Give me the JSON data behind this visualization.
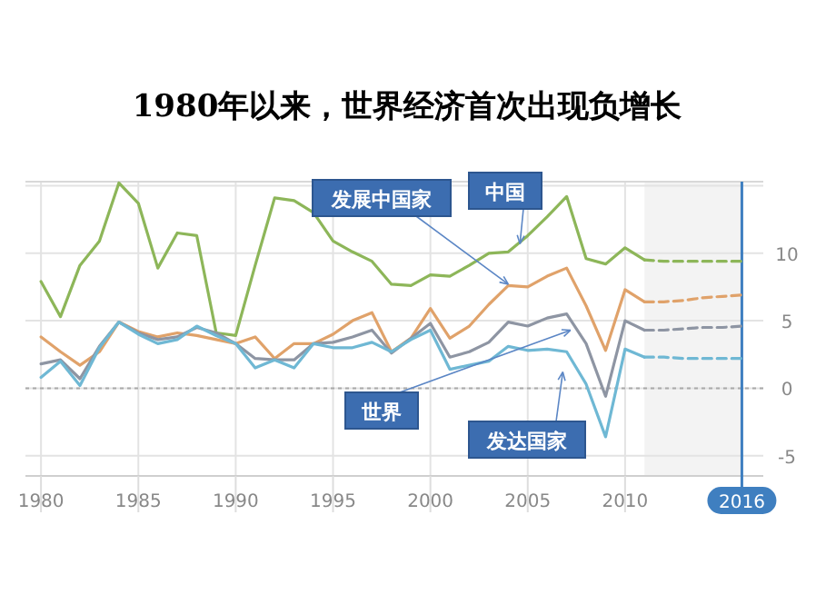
{
  "chart_data": {
    "type": "line",
    "title": "1980年以来，世界经济首次出现负增长",
    "xlim": [
      1979.2,
      2017.1
    ],
    "xticks": [
      1980,
      1985,
      1990,
      1995,
      2000,
      2005,
      2010,
      2016
    ],
    "ylim": [
      -6.5,
      15.3
    ],
    "yticks": [
      -5,
      0,
      5,
      10,
      {
        "value": 15,
        "label": null
      }
    ],
    "grid": true,
    "marker": "none",
    "ref_lines": [
      {
        "axis": "y",
        "value": 0,
        "label": null,
        "line_style": "dotted",
        "color": "#aaaaaa"
      }
    ],
    "bands": [
      {
        "axis": "x",
        "from": 2011,
        "to": 2016,
        "label": null,
        "color": "#f3f3f3"
      }
    ],
    "series": [
      {
        "name": "发展中国家",
        "color": "#e0a26a",
        "x": [
          1980,
          1981,
          1982,
          1983,
          1984,
          1985,
          1986,
          1987,
          1988,
          1989,
          1990,
          1991,
          1992,
          1993,
          1994,
          1995,
          1996,
          1997,
          1998,
          1999,
          2000,
          2001,
          2002,
          2003,
          2004,
          2005,
          2006,
          2007,
          2008,
          2009,
          2010,
          2011
        ],
        "values": [
          3.8,
          2.7,
          1.7,
          2.7,
          4.9,
          4.2,
          3.8,
          4.1,
          3.9,
          3.6,
          3.3,
          3.8,
          2.2,
          3.3,
          3.3,
          4.0,
          5.0,
          5.6,
          2.7,
          3.7,
          5.9,
          3.7,
          4.6,
          6.2,
          7.6,
          7.5,
          8.3,
          8.9,
          6.1,
          2.8,
          7.3,
          6.4
        ]
      },
      {
        "name": "中国",
        "color": "#8db659",
        "x": [
          1980,
          1981,
          1982,
          1983,
          1984,
          1985,
          1986,
          1987,
          1988,
          1989,
          1990,
          1991,
          1992,
          1993,
          1994,
          1995,
          1996,
          1997,
          1998,
          1999,
          2000,
          2001,
          2002,
          2003,
          2004,
          2005,
          2006,
          2007,
          2008,
          2009,
          2010,
          2011
        ],
        "values": [
          7.9,
          5.3,
          9.1,
          10.9,
          15.2,
          13.7,
          8.9,
          11.5,
          11.3,
          4.1,
          3.9,
          9.1,
          14.1,
          13.9,
          13.0,
          10.9,
          10.1,
          9.4,
          7.7,
          7.6,
          8.4,
          8.3,
          9.1,
          10.0,
          10.1,
          11.3,
          12.7,
          14.2,
          9.6,
          9.2,
          10.4,
          9.5
        ]
      },
      {
        "name": "世界",
        "color": "#8e95a3",
        "x": [
          1980,
          1981,
          1982,
          1983,
          1984,
          1985,
          1986,
          1987,
          1988,
          1989,
          1990,
          1991,
          1992,
          1993,
          1994,
          1995,
          1996,
          1997,
          1998,
          1999,
          2000,
          2001,
          2002,
          2003,
          2004,
          2005,
          2006,
          2007,
          2008,
          2009,
          2010,
          2011
        ],
        "values": [
          1.8,
          2.1,
          0.7,
          3.1,
          4.9,
          4.1,
          3.6,
          3.8,
          4.5,
          4.1,
          3.3,
          2.2,
          2.1,
          2.1,
          3.3,
          3.4,
          3.8,
          4.3,
          2.6,
          3.7,
          4.8,
          2.3,
          2.7,
          3.4,
          4.9,
          4.6,
          5.2,
          5.5,
          3.3,
          -0.6,
          5.0,
          4.3
        ]
      },
      {
        "name": "发达国家",
        "color": "#6fb8d4",
        "x": [
          1980,
          1981,
          1982,
          1983,
          1984,
          1985,
          1986,
          1987,
          1988,
          1989,
          1990,
          1991,
          1992,
          1993,
          1994,
          1995,
          1996,
          1997,
          1998,
          1999,
          2000,
          2001,
          2002,
          2003,
          2004,
          2005,
          2006,
          2007,
          2008,
          2009,
          2010,
          2011
        ],
        "values": [
          0.8,
          2.0,
          0.2,
          3.0,
          4.9,
          4.0,
          3.3,
          3.6,
          4.6,
          3.9,
          3.3,
          1.5,
          2.1,
          1.5,
          3.3,
          3.0,
          3.0,
          3.4,
          2.7,
          3.6,
          4.3,
          1.4,
          1.7,
          2.0,
          3.1,
          2.8,
          2.9,
          2.7,
          0.3,
          -3.6,
          2.9,
          2.3
        ]
      },
      {
        "color": "#e0a26a",
        "line_style": "dashed",
        "x": [
          2011,
          2012,
          2013,
          2014,
          2015,
          2016
        ],
        "values": [
          6.4,
          6.4,
          6.5,
          6.7,
          6.8,
          6.9
        ]
      },
      {
        "color": "#8db659",
        "line_style": "dashed",
        "x": [
          2011,
          2012,
          2013,
          2014,
          2015,
          2016
        ],
        "values": [
          9.5,
          9.4,
          9.4,
          9.4,
          9.4,
          9.4
        ]
      },
      {
        "color": "#8e95a3",
        "line_style": "dashed",
        "x": [
          2011,
          2012,
          2013,
          2014,
          2015,
          2016
        ],
        "values": [
          4.3,
          4.3,
          4.4,
          4.5,
          4.5,
          4.6
        ]
      },
      {
        "color": "#6fb8d4",
        "line_style": "dashed",
        "x": [
          2011,
          2012,
          2013,
          2014,
          2015,
          2016
        ],
        "values": [
          2.3,
          2.3,
          2.2,
          2.2,
          2.2,
          2.2
        ]
      }
    ]
  }
}
